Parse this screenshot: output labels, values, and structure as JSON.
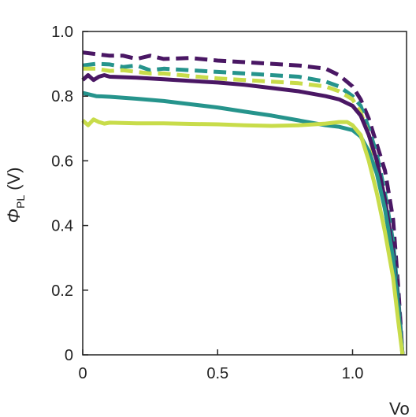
{
  "chart_data": {
    "type": "line",
    "xlabel": "Vo",
    "ylabel": {
      "symbol": "Φ",
      "subscript": "PL",
      "unit": "(V)"
    },
    "xlim": [
      0,
      1.2
    ],
    "ylim": [
      0,
      1.0
    ],
    "xticks": [
      0,
      0.5,
      1.0
    ],
    "xtick_labels": [
      "0",
      "0.5",
      "1.0"
    ],
    "yticks": [
      0,
      0.2,
      0.4,
      0.6,
      0.8,
      1.0
    ],
    "ytick_labels": [
      "0",
      "0.2",
      "0.4",
      "0.6",
      "0.8",
      "1.0"
    ],
    "grid": false,
    "series": [
      {
        "color": "#4a1764",
        "style": "dashed",
        "x": [
          0,
          0.05,
          0.1,
          0.15,
          0.2,
          0.25,
          0.3,
          0.4,
          0.5,
          0.6,
          0.7,
          0.8,
          0.9,
          0.95,
          1.0,
          1.03,
          1.06,
          1.09,
          1.12,
          1.15,
          1.17,
          1.185
        ],
        "y": [
          0.935,
          0.93,
          0.925,
          0.925,
          0.915,
          0.925,
          0.915,
          0.918,
          0.91,
          0.905,
          0.9,
          0.895,
          0.885,
          0.865,
          0.83,
          0.79,
          0.73,
          0.65,
          0.57,
          0.42,
          0.2,
          0.0
        ]
      },
      {
        "color": "#26948c",
        "style": "dashed",
        "x": [
          0,
          0.05,
          0.1,
          0.15,
          0.2,
          0.25,
          0.3,
          0.4,
          0.5,
          0.6,
          0.7,
          0.8,
          0.9,
          0.95,
          1.0,
          1.03,
          1.06,
          1.09,
          1.12,
          1.15,
          1.17,
          1.185
        ],
        "y": [
          0.895,
          0.9,
          0.898,
          0.89,
          0.895,
          0.88,
          0.885,
          0.88,
          0.875,
          0.87,
          0.865,
          0.86,
          0.845,
          0.83,
          0.8,
          0.77,
          0.7,
          0.62,
          0.5,
          0.35,
          0.17,
          0.0
        ]
      },
      {
        "color": "#c8dc4a",
        "style": "dashed",
        "x": [
          0,
          0.05,
          0.1,
          0.15,
          0.2,
          0.25,
          0.3,
          0.4,
          0.5,
          0.6,
          0.7,
          0.8,
          0.9,
          0.95,
          1.0,
          1.03,
          1.06,
          1.09,
          1.12,
          1.15,
          1.17,
          1.185
        ],
        "y": [
          0.885,
          0.885,
          0.878,
          0.88,
          0.875,
          0.87,
          0.87,
          0.862,
          0.855,
          0.85,
          0.845,
          0.84,
          0.83,
          0.815,
          0.79,
          0.75,
          0.68,
          0.58,
          0.45,
          0.3,
          0.14,
          0.0
        ]
      },
      {
        "color": "#4a1764",
        "style": "solid",
        "x": [
          0,
          0.02,
          0.04,
          0.06,
          0.08,
          0.1,
          0.2,
          0.3,
          0.4,
          0.5,
          0.6,
          0.7,
          0.8,
          0.9,
          0.95,
          1.0,
          1.03,
          1.06,
          1.09,
          1.12,
          1.15,
          1.17,
          1.185
        ],
        "y": [
          0.85,
          0.865,
          0.85,
          0.86,
          0.865,
          0.86,
          0.857,
          0.852,
          0.847,
          0.842,
          0.835,
          0.825,
          0.815,
          0.8,
          0.79,
          0.77,
          0.74,
          0.68,
          0.6,
          0.48,
          0.32,
          0.15,
          0.0
        ]
      },
      {
        "color": "#26948c",
        "style": "solid",
        "x": [
          0,
          0.05,
          0.1,
          0.2,
          0.3,
          0.4,
          0.5,
          0.6,
          0.7,
          0.8,
          0.9,
          0.95,
          1.0,
          1.03,
          1.06,
          1.09,
          1.12,
          1.15,
          1.17,
          1.185
        ],
        "y": [
          0.81,
          0.8,
          0.798,
          0.792,
          0.785,
          0.775,
          0.765,
          0.752,
          0.74,
          0.725,
          0.71,
          0.705,
          0.695,
          0.675,
          0.63,
          0.56,
          0.45,
          0.3,
          0.14,
          0.0
        ]
      },
      {
        "color": "#c8dc4a",
        "style": "solid",
        "x": [
          0,
          0.02,
          0.04,
          0.06,
          0.08,
          0.1,
          0.2,
          0.3,
          0.4,
          0.5,
          0.6,
          0.7,
          0.8,
          0.9,
          0.95,
          0.98,
          1.0,
          1.03,
          1.06,
          1.09,
          1.12,
          1.15,
          1.17,
          1.185
        ],
        "y": [
          0.725,
          0.71,
          0.728,
          0.72,
          0.715,
          0.718,
          0.716,
          0.716,
          0.714,
          0.713,
          0.71,
          0.708,
          0.71,
          0.715,
          0.72,
          0.72,
          0.71,
          0.68,
          0.6,
          0.5,
          0.38,
          0.24,
          0.1,
          0.0
        ]
      }
    ]
  }
}
